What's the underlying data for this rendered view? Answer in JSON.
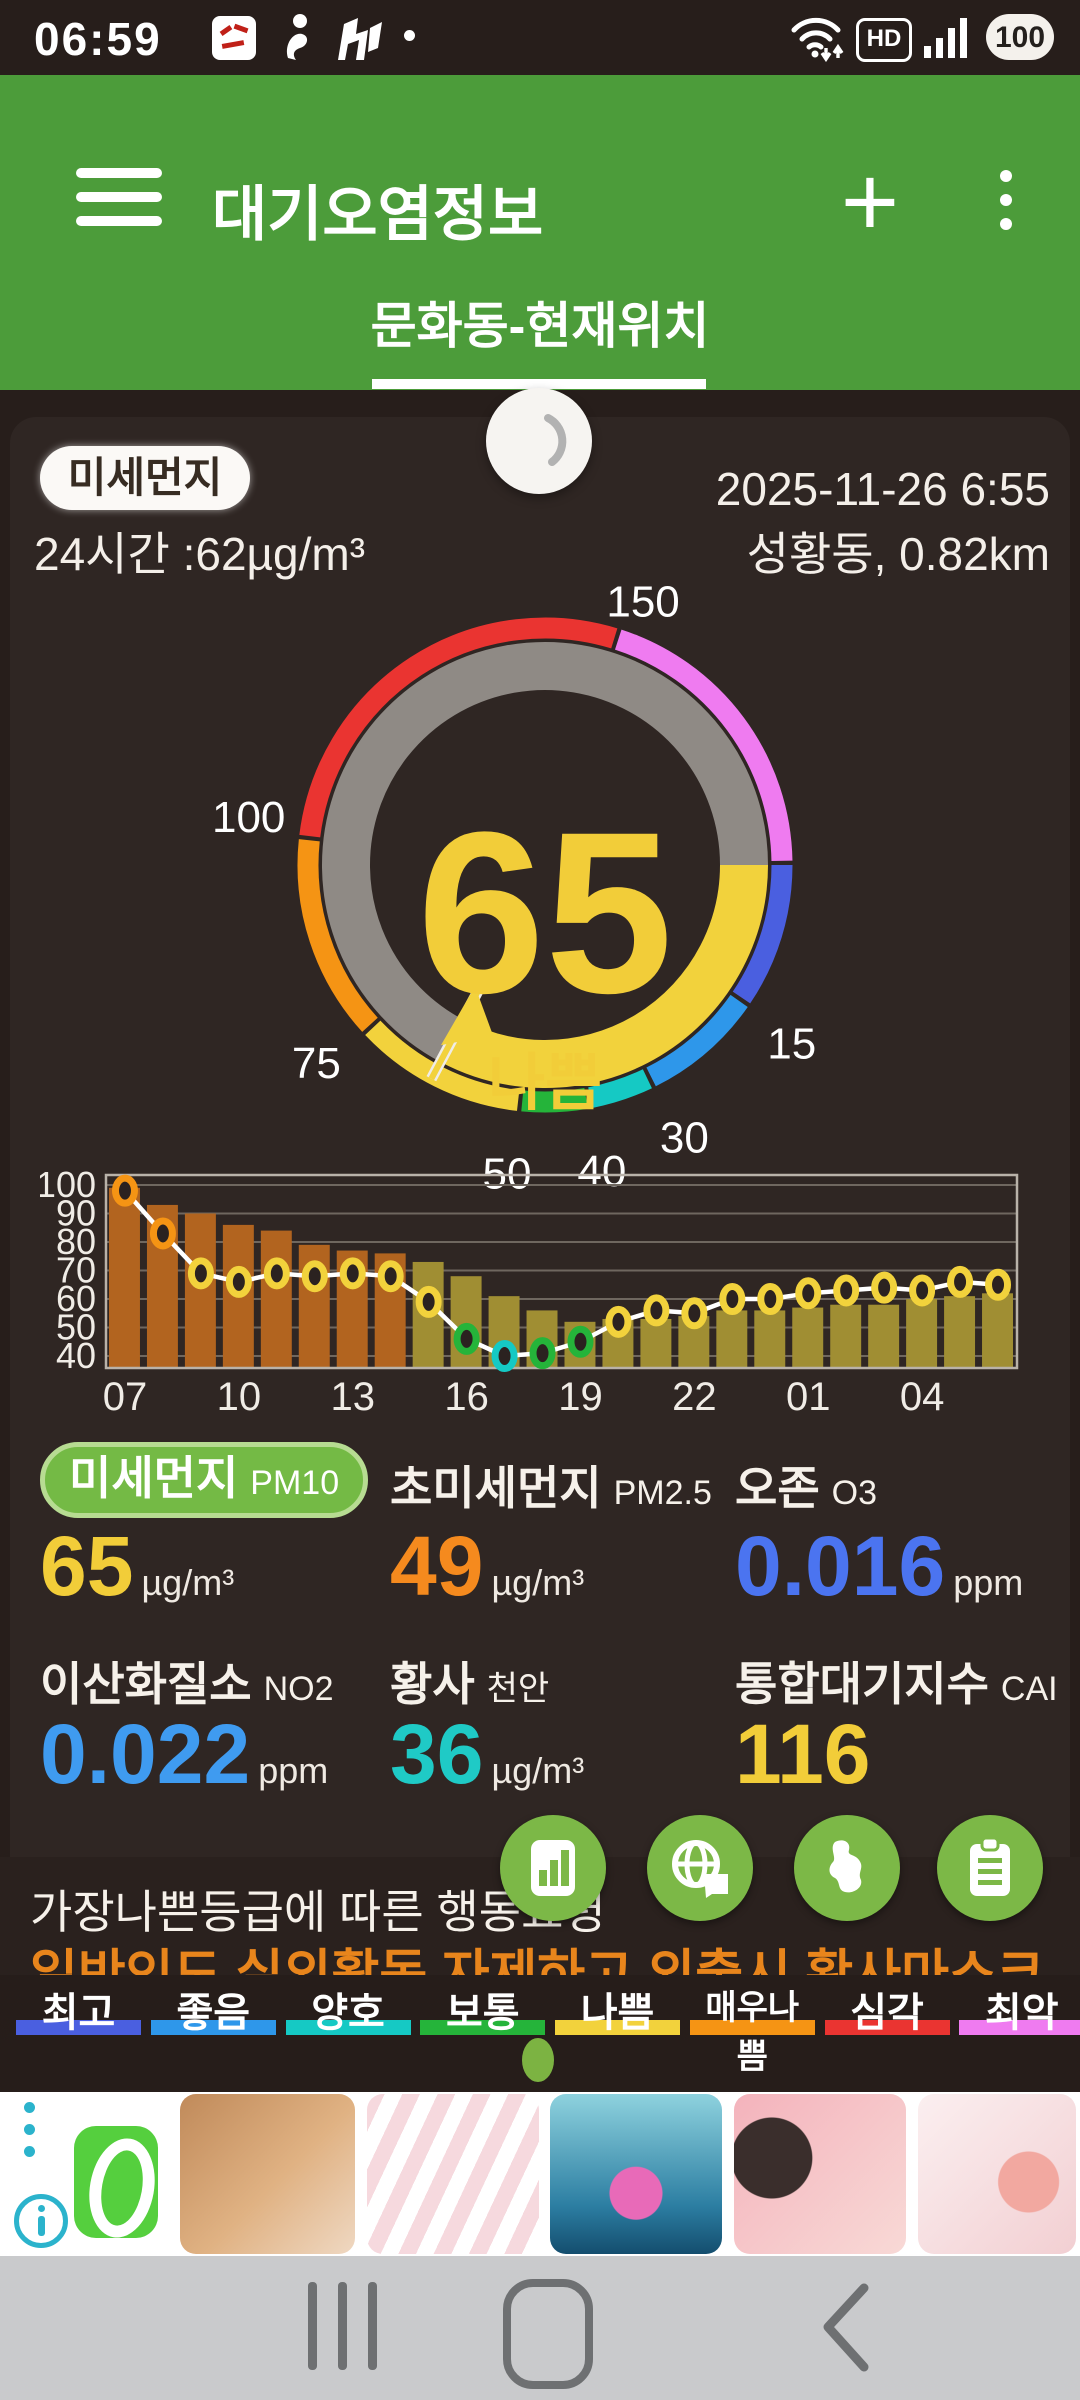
{
  "status_bar": {
    "time": "06:59",
    "battery": "100",
    "hd_label": "HD"
  },
  "header": {
    "title": "대기오염정보",
    "tab": "문화동-현재위치"
  },
  "info": {
    "badge": "미세먼지",
    "avg_line": "24시간 :62µg/m³",
    "datetime": "2025-11-26 6:55",
    "station": "성황동, 0.82km"
  },
  "gauge": {
    "value": "65",
    "status": "나쁨",
    "value_color": "#f2cd39",
    "track_color": "#8f8a85",
    "fill_color": "#f2d23c",
    "start_angle": 90,
    "needle_angle": 208,
    "max": 200,
    "segments": [
      {
        "label": "최고",
        "from": 0,
        "to": 15,
        "color": "#4a5fe0",
        "a0": 90,
        "a1": 124
      },
      {
        "label": "좋음",
        "from": 15,
        "to": 30,
        "color": "#2e97ea",
        "a0": 125,
        "a1": 153.4
      },
      {
        "label": "양호",
        "from": 30,
        "to": 40,
        "color": "#15c9c4",
        "a0": 154.4,
        "a1": 169
      },
      {
        "label": "보통",
        "from": 40,
        "to": 50,
        "color": "#25b43a",
        "a0": 170,
        "a1": 185.5
      },
      {
        "label": "나쁨",
        "from": 50,
        "to": 75,
        "color": "#f2d23c",
        "a0": 186.5,
        "a1": 226.6
      },
      {
        "label": "매우나쁨",
        "from": 75,
        "to": 100,
        "color": "#f59414",
        "a0": 227.6,
        "a1": 276
      },
      {
        "label": "심각",
        "from": 100,
        "to": 150,
        "color": "#ea3431",
        "a0": 277,
        "a1": 377
      },
      {
        "label": "최악",
        "from": 150,
        "to": 200,
        "color": "#ef7bf0",
        "a0": 378,
        "a1": 449
      }
    ],
    "ticks": [
      {
        "v": "15",
        "a": 126,
        "r": 305
      },
      {
        "v": "30",
        "a": 153,
        "r": 307
      },
      {
        "v": "40",
        "a": 169.5,
        "r": 312
      },
      {
        "v": "50",
        "a": 187,
        "r": 312
      },
      {
        "v": "75",
        "a": 229,
        "r": 303
      },
      {
        "v": "100",
        "a": 279,
        "r": 300
      },
      {
        "v": "150",
        "a": 20.5,
        "r": 280
      }
    ]
  },
  "chart_data": {
    "type": "bar+line",
    "title": "",
    "xlabel": "",
    "ylabel": "",
    "x": [
      "07",
      "08",
      "09",
      "10",
      "11",
      "12",
      "13",
      "14",
      "15",
      "16",
      "17",
      "18",
      "19",
      "20",
      "21",
      "22",
      "23",
      "00",
      "01",
      "02",
      "03",
      "04",
      "05",
      "06"
    ],
    "x_ticks": [
      {
        "i": 0,
        "label": "07"
      },
      {
        "i": 3,
        "label": "10"
      },
      {
        "i": 6,
        "label": "13"
      },
      {
        "i": 9,
        "label": "16"
      },
      {
        "i": 12,
        "label": "19"
      },
      {
        "i": 15,
        "label": "22"
      },
      {
        "i": 18,
        "label": "01"
      },
      {
        "i": 21,
        "label": "04"
      }
    ],
    "yticks": [
      40,
      50,
      60,
      70,
      80,
      90,
      100
    ],
    "ylim": [
      35.8,
      103.5
    ],
    "grid": true,
    "series": [
      {
        "name": "moving-average-bars",
        "type": "bar",
        "values": [
          99,
          93,
          90,
          86,
          84,
          79,
          77,
          76,
          73,
          68,
          61,
          56,
          52,
          53,
          53,
          54,
          56,
          56,
          57,
          58,
          58,
          60,
          61,
          62
        ],
        "colors": [
          "#b2641f",
          "#b2641f",
          "#b2641f",
          "#b2641f",
          "#b2641f",
          "#b2641f",
          "#b2641f",
          "#b2641f",
          "#a08e33",
          "#a08e33",
          "#a08e33",
          "#a08e33",
          "#a08e33",
          "#a08e33",
          "#a08e33",
          "#a08e33",
          "#a08e33",
          "#a08e33",
          "#a08e33",
          "#a08e33",
          "#a08e33",
          "#a08e33",
          "#a08e33",
          "#a08e33"
        ]
      },
      {
        "name": "hourly-line",
        "type": "line",
        "line_color": "#ffffff",
        "values": [
          98,
          83,
          69,
          66,
          69,
          68,
          69,
          68,
          59,
          46,
          40,
          41,
          45,
          52,
          56,
          55,
          60,
          60,
          62,
          63,
          64,
          63,
          66,
          65
        ],
        "marker_colors": [
          "#f59414",
          "#f59414",
          "#f2d23c",
          "#f2d23c",
          "#f2d23c",
          "#f2d23c",
          "#f2d23c",
          "#f2d23c",
          "#f2d23c",
          "#25b43a",
          "#15c9c4",
          "#25b43a",
          "#25b43a",
          "#f2d23c",
          "#f2d23c",
          "#f2d23c",
          "#f2d23c",
          "#f2d23c",
          "#f2d23c",
          "#f2d23c",
          "#f2d23c",
          "#f2d23c",
          "#f2d23c",
          "#f2d23c"
        ]
      }
    ]
  },
  "metrics": [
    {
      "label": "미세먼지",
      "sub": "PM10",
      "value": "65",
      "unit": "µg/m³",
      "value_color": "#f2cd39",
      "badge": true
    },
    {
      "label": "초미세먼지",
      "sub": "PM2.5",
      "value": "49",
      "unit": "µg/m³",
      "value_color": "#f58a1e",
      "badge": false
    },
    {
      "label": "오존",
      "sub": "O3",
      "value": "0.016",
      "unit": "ppm",
      "value_color": "#4b74f0",
      "badge": false
    },
    {
      "label": "이산화질소",
      "sub": "NO2",
      "value": "0.022",
      "unit": "ppm",
      "value_color": "#3f9bf0",
      "badge": false
    },
    {
      "label": "황사",
      "sub": "천안",
      "value": "36",
      "unit": "µg/m³",
      "value_color": "#1fcac6",
      "badge": false
    },
    {
      "label": "통합대기지수",
      "sub": "CAI",
      "value": "116",
      "unit": "",
      "value_color": "#f2cd39",
      "badge": false
    }
  ],
  "actions": {
    "title": "가장나쁜등급에 따른 행동요령",
    "advice": "일반인도 실외활동 자제하고 외출시 황사마스크",
    "buttons": [
      "stats-chart-icon",
      "globe-share-icon",
      "korea-map-icon",
      "clipboard-icon"
    ]
  },
  "legend": {
    "items": [
      {
        "label": "최고",
        "color": "#4a5fe0"
      },
      {
        "label": "좋음",
        "color": "#2e97ea"
      },
      {
        "label": "양호",
        "color": "#15c9c4"
      },
      {
        "label": "보통",
        "color": "#25b43a"
      },
      {
        "label": "나쁨",
        "color": "#f2d23c"
      },
      {
        "label": "매우나쁨",
        "color": "#f59414"
      },
      {
        "label": "심각",
        "color": "#ea3431"
      },
      {
        "label": "최악",
        "color": "#ef7bf0"
      }
    ]
  },
  "ad": {
    "thumbs": [
      "model-photo-1",
      "model-photo-2",
      "model-photo-3",
      "model-photo-4",
      "model-photo-5"
    ]
  },
  "theme": {
    "header_green": "#4c9c3a",
    "panel_bg": "#2f2623",
    "page_bg": "#271e1b"
  }
}
